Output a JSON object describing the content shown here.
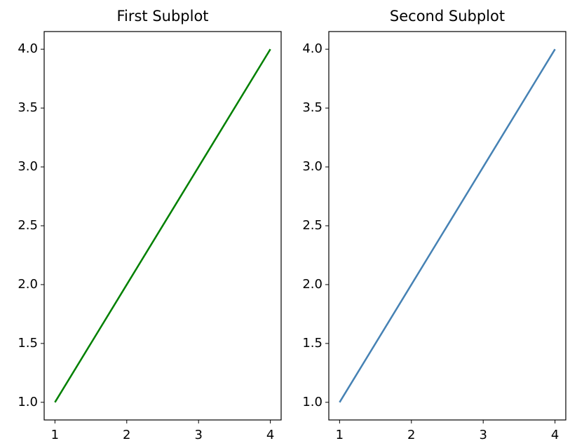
{
  "chart_data": [
    {
      "type": "line",
      "title": "First Subplot",
      "x": [
        1,
        2,
        3,
        4
      ],
      "series": [
        {
          "name": "line",
          "color": "#008000",
          "values": [
            1,
            2,
            3,
            4
          ]
        }
      ],
      "xlim": [
        0.85,
        4.15
      ],
      "ylim": [
        0.85,
        4.15
      ],
      "xticks": [
        1,
        2,
        3,
        4
      ],
      "yticks": [
        {
          "value": 1,
          "label": "1.0"
        },
        {
          "value": 1.5,
          "label": "1.5"
        },
        {
          "value": 2,
          "label": "2.0"
        },
        {
          "value": 2.5,
          "label": "2.5"
        },
        {
          "value": 3,
          "label": "3.0"
        },
        {
          "value": 3.5,
          "label": "3.5"
        },
        {
          "value": 4,
          "label": "4.0"
        }
      ],
      "grid": false
    },
    {
      "type": "line",
      "title": "Second Subplot",
      "x": [
        1,
        2,
        3,
        4
      ],
      "series": [
        {
          "name": "line",
          "color": "#4682b4",
          "values": [
            1,
            2,
            3,
            4
          ]
        }
      ],
      "xlim": [
        0.85,
        4.15
      ],
      "ylim": [
        0.85,
        4.15
      ],
      "xticks": [
        1,
        2,
        3,
        4
      ],
      "yticks": [
        {
          "value": 1,
          "label": "1.0"
        },
        {
          "value": 1.5,
          "label": "1.5"
        },
        {
          "value": 2,
          "label": "2.0"
        },
        {
          "value": 2.5,
          "label": "2.5"
        },
        {
          "value": 3,
          "label": "3.0"
        },
        {
          "value": 3.5,
          "label": "3.5"
        },
        {
          "value": 4,
          "label": "4.0"
        }
      ],
      "grid": false
    }
  ]
}
